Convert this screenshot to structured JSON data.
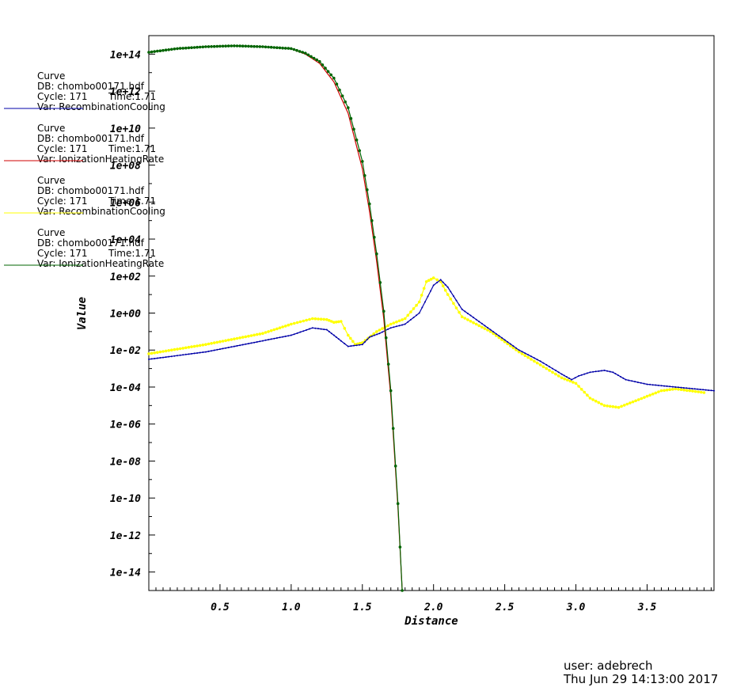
{
  "chart_data": {
    "type": "line",
    "title": "",
    "xlabel": "Distance",
    "ylabel": "Value",
    "x_scale": "linear",
    "y_scale": "log",
    "xlim": [
      0.0,
      3.97
    ],
    "ylim_log10": [
      -15.0,
      15.0
    ],
    "x_ticks": [
      0.5,
      1.0,
      1.5,
      2.0,
      2.5,
      3.0,
      3.5
    ],
    "x_tick_labels": [
      "0.5",
      "1.0",
      "1.5",
      "2.0",
      "2.5",
      "3.0",
      "3.5"
    ],
    "y_ticks_log10": [
      14,
      12,
      10,
      8,
      6,
      4,
      2,
      0,
      -2,
      -4,
      -6,
      -8,
      -10,
      -12,
      -14
    ],
    "y_tick_labels": [
      "1e+14",
      "1e+12",
      "1e+10",
      "1e+08",
      "1e+06",
      "1e+04",
      "1e+02",
      "1e+00",
      "1e-02",
      "1e-04",
      "1e-06",
      "1e-08",
      "1e-10",
      "1e-12",
      "1e-14"
    ],
    "grid": false,
    "legend_placement": "left",
    "series": [
      {
        "legend": {
          "label": "Curve",
          "db": "DB: chombo00171.hdf",
          "cycle": "Cycle: 171",
          "time": "Time:1.71",
          "var": "Var: RecombinationCooling"
        },
        "color": "#0000a8",
        "marker": "small",
        "x": [
          0.0,
          0.4,
          0.8,
          1.0,
          1.15,
          1.25,
          1.3,
          1.35,
          1.4,
          1.5,
          1.55,
          1.62,
          1.7,
          1.8,
          1.9,
          2.0,
          2.05,
          2.1,
          2.2,
          2.4,
          2.6,
          2.75,
          2.9,
          2.97,
          3.02,
          3.1,
          3.2,
          3.26,
          3.35,
          3.5,
          3.7,
          3.97
        ],
        "log10y": [
          -2.5,
          -2.1,
          -1.5,
          -1.2,
          -0.8,
          -0.9,
          -1.2,
          -1.5,
          -1.8,
          -1.7,
          -1.3,
          -1.1,
          -0.8,
          -0.6,
          0.0,
          1.5,
          1.8,
          1.4,
          0.2,
          -0.9,
          -2.0,
          -2.6,
          -3.3,
          -3.6,
          -3.4,
          -3.2,
          -3.1,
          -3.2,
          -3.6,
          -3.85,
          -4.0,
          -4.2
        ]
      },
      {
        "legend": {
          "label": "Curve",
          "db": "DB: chombo00171.hdf",
          "cycle": "Cycle: 171",
          "time": "Time:1.71",
          "var": "Var: IonizationHeatingRate"
        },
        "color": "#d00000",
        "marker": "none",
        "x": [
          0.0,
          0.2,
          0.4,
          0.6,
          0.8,
          1.0,
          1.1,
          1.2,
          1.3,
          1.4,
          1.5,
          1.55,
          1.6,
          1.65,
          1.7,
          1.75,
          1.78
        ],
        "log10y": [
          14.1,
          14.3,
          14.4,
          14.45,
          14.4,
          14.3,
          14.0,
          13.5,
          12.5,
          10.8,
          7.8,
          5.5,
          2.8,
          -0.3,
          -4.5,
          -10.5,
          -15.0
        ]
      },
      {
        "legend": {
          "label": "Curve",
          "db": "DB: chombo00171.hdf",
          "cycle": "Cycle: 171",
          "time": "Time:1.71",
          "var": "Var: RecombinationCooling"
        },
        "color": "#ffff00",
        "marker": "dot",
        "x": [
          0.0,
          0.4,
          0.8,
          1.0,
          1.15,
          1.25,
          1.3,
          1.35,
          1.4,
          1.45,
          1.5,
          1.6,
          1.7,
          1.8,
          1.9,
          1.95,
          2.0,
          2.05,
          2.1,
          2.2,
          2.4,
          2.6,
          2.75,
          2.9,
          3.0,
          3.1,
          3.2,
          3.3,
          3.4,
          3.5,
          3.6,
          3.7,
          3.8,
          3.9
        ],
        "log10y": [
          -2.2,
          -1.7,
          -1.1,
          -0.6,
          -0.3,
          -0.35,
          -0.5,
          -0.45,
          -1.2,
          -1.7,
          -1.6,
          -1.0,
          -0.6,
          -0.3,
          0.6,
          1.7,
          1.9,
          1.7,
          1.0,
          -0.2,
          -1.0,
          -2.1,
          -2.8,
          -3.5,
          -3.8,
          -4.6,
          -5.0,
          -5.1,
          -4.8,
          -4.5,
          -4.2,
          -4.1,
          -4.2,
          -4.3
        ]
      },
      {
        "legend": {
          "label": "Curve",
          "db": "DB: chombo00171.hdf",
          "cycle": "Cycle: 171",
          "time": "Time:1.71",
          "var": "Var: IonizationHeatingRate"
        },
        "color": "#006400",
        "marker": "dot",
        "x": [
          0.0,
          0.2,
          0.4,
          0.6,
          0.8,
          1.0,
          1.1,
          1.2,
          1.3,
          1.4,
          1.5,
          1.55,
          1.6,
          1.65,
          1.7,
          1.75,
          1.78
        ],
        "log10y": [
          14.1,
          14.3,
          14.4,
          14.45,
          14.4,
          14.3,
          14.05,
          13.6,
          12.7,
          11.1,
          8.2,
          5.9,
          3.2,
          0.1,
          -4.2,
          -10.3,
          -15.0
        ]
      }
    ]
  },
  "footer": {
    "user": "user: adebrech",
    "date": "Thu Jun 29 14:13:00 2017"
  }
}
